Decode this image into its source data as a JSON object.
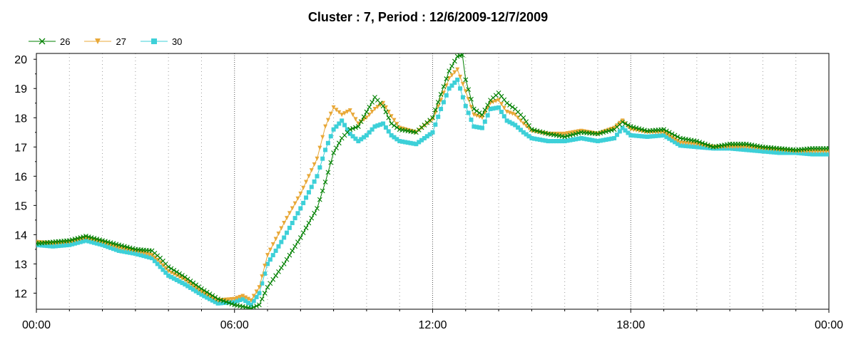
{
  "chart_data": {
    "type": "line",
    "title": "Cluster : 7, Period : 12/6/2009-12/7/2009",
    "xlabel": "",
    "ylabel": "",
    "x_ticks": [
      "00:00",
      "06:00",
      "12:00",
      "18:00",
      "00:00"
    ],
    "y_ticks": [
      "12",
      "13",
      "14",
      "15",
      "16",
      "17",
      "18",
      "19",
      "20"
    ],
    "ylim": [
      11.45,
      20.2
    ],
    "xlim_hours": [
      0,
      24
    ],
    "grid": true,
    "legend_position": "top-left",
    "series": [
      {
        "name": "26",
        "color": "#008000",
        "marker": "x",
        "points": [
          [
            0,
            13.7
          ],
          [
            0.5,
            13.75
          ],
          [
            1,
            13.8
          ],
          [
            1.5,
            13.95
          ],
          [
            2,
            13.8
          ],
          [
            2.5,
            13.65
          ],
          [
            3,
            13.5
          ],
          [
            3.5,
            13.45
          ],
          [
            3.75,
            13.2
          ],
          [
            4,
            12.9
          ],
          [
            4.5,
            12.55
          ],
          [
            5,
            12.15
          ],
          [
            5.5,
            11.8
          ],
          [
            6,
            11.6
          ],
          [
            6.5,
            11.48
          ],
          [
            6.75,
            11.6
          ],
          [
            7,
            12.2
          ],
          [
            7.5,
            13.0
          ],
          [
            8,
            13.9
          ],
          [
            8.5,
            14.9
          ],
          [
            8.75,
            15.8
          ],
          [
            9,
            16.8
          ],
          [
            9.25,
            17.3
          ],
          [
            9.5,
            17.6
          ],
          [
            9.75,
            17.7
          ],
          [
            10,
            18.2
          ],
          [
            10.25,
            18.7
          ],
          [
            10.5,
            18.4
          ],
          [
            10.75,
            17.8
          ],
          [
            11,
            17.6
          ],
          [
            11.5,
            17.5
          ],
          [
            12,
            18.0
          ],
          [
            12.25,
            18.8
          ],
          [
            12.5,
            19.6
          ],
          [
            12.75,
            20.1
          ],
          [
            12.9,
            20.15
          ],
          [
            13,
            19.3
          ],
          [
            13.25,
            18.3
          ],
          [
            13.5,
            18.1
          ],
          [
            13.75,
            18.6
          ],
          [
            14,
            18.85
          ],
          [
            14.25,
            18.5
          ],
          [
            14.5,
            18.3
          ],
          [
            14.75,
            18.0
          ],
          [
            15,
            17.6
          ],
          [
            15.5,
            17.45
          ],
          [
            16,
            17.35
          ],
          [
            16.5,
            17.5
          ],
          [
            17,
            17.45
          ],
          [
            17.5,
            17.6
          ],
          [
            17.75,
            17.85
          ],
          [
            18,
            17.7
          ],
          [
            18.5,
            17.55
          ],
          [
            19,
            17.6
          ],
          [
            19.5,
            17.3
          ],
          [
            20,
            17.2
          ],
          [
            20.5,
            17.0
          ],
          [
            21,
            17.1
          ],
          [
            21.5,
            17.1
          ],
          [
            22,
            17.0
          ],
          [
            22.5,
            16.95
          ],
          [
            23,
            16.9
          ],
          [
            23.5,
            16.95
          ],
          [
            24,
            16.95
          ]
        ]
      },
      {
        "name": "27",
        "color": "#e8a838",
        "marker": "triangle-down",
        "points": [
          [
            0,
            13.75
          ],
          [
            0.5,
            13.7
          ],
          [
            1,
            13.75
          ],
          [
            1.5,
            13.9
          ],
          [
            2,
            13.75
          ],
          [
            2.5,
            13.55
          ],
          [
            3,
            13.45
          ],
          [
            3.5,
            13.3
          ],
          [
            3.75,
            13.05
          ],
          [
            4,
            12.75
          ],
          [
            4.5,
            12.45
          ],
          [
            5,
            12.05
          ],
          [
            5.5,
            11.75
          ],
          [
            6,
            11.8
          ],
          [
            6.25,
            11.9
          ],
          [
            6.5,
            11.75
          ],
          [
            6.75,
            12.2
          ],
          [
            7,
            13.3
          ],
          [
            7.5,
            14.4
          ],
          [
            8,
            15.4
          ],
          [
            8.5,
            16.6
          ],
          [
            8.75,
            17.7
          ],
          [
            9,
            18.35
          ],
          [
            9.25,
            18.1
          ],
          [
            9.5,
            18.25
          ],
          [
            9.75,
            17.8
          ],
          [
            10,
            18.0
          ],
          [
            10.25,
            18.3
          ],
          [
            10.5,
            18.5
          ],
          [
            10.75,
            18.05
          ],
          [
            11,
            17.65
          ],
          [
            11.5,
            17.5
          ],
          [
            12,
            17.95
          ],
          [
            12.25,
            18.6
          ],
          [
            12.5,
            19.35
          ],
          [
            12.75,
            19.65
          ],
          [
            13,
            18.9
          ],
          [
            13.25,
            18.1
          ],
          [
            13.5,
            18.0
          ],
          [
            13.75,
            18.5
          ],
          [
            14,
            18.6
          ],
          [
            14.25,
            18.2
          ],
          [
            14.5,
            18.1
          ],
          [
            14.75,
            17.8
          ],
          [
            15,
            17.55
          ],
          [
            15.5,
            17.45
          ],
          [
            16,
            17.45
          ],
          [
            16.5,
            17.55
          ],
          [
            17,
            17.45
          ],
          [
            17.5,
            17.65
          ],
          [
            17.75,
            17.9
          ],
          [
            18,
            17.6
          ],
          [
            18.5,
            17.5
          ],
          [
            19,
            17.5
          ],
          [
            19.5,
            17.15
          ],
          [
            20,
            17.1
          ],
          [
            20.5,
            17.0
          ],
          [
            21,
            17.0
          ],
          [
            21.5,
            17.0
          ],
          [
            22,
            16.95
          ],
          [
            22.5,
            16.9
          ],
          [
            23,
            16.85
          ],
          [
            23.5,
            16.85
          ],
          [
            24,
            16.85
          ]
        ]
      },
      {
        "name": "30",
        "color": "#3dd0d8",
        "marker": "square",
        "points": [
          [
            0,
            13.65
          ],
          [
            0.5,
            13.6
          ],
          [
            1,
            13.65
          ],
          [
            1.5,
            13.8
          ],
          [
            2,
            13.65
          ],
          [
            2.5,
            13.45
          ],
          [
            3,
            13.35
          ],
          [
            3.5,
            13.2
          ],
          [
            3.75,
            12.9
          ],
          [
            4,
            12.6
          ],
          [
            4.5,
            12.3
          ],
          [
            5,
            11.95
          ],
          [
            5.5,
            11.65
          ],
          [
            6,
            11.7
          ],
          [
            6.25,
            11.8
          ],
          [
            6.5,
            11.6
          ],
          [
            6.75,
            12.0
          ],
          [
            7,
            13.0
          ],
          [
            7.5,
            13.9
          ],
          [
            8,
            14.9
          ],
          [
            8.5,
            16.0
          ],
          [
            8.75,
            16.9
          ],
          [
            9,
            17.6
          ],
          [
            9.25,
            17.9
          ],
          [
            9.5,
            17.45
          ],
          [
            9.75,
            17.2
          ],
          [
            10,
            17.4
          ],
          [
            10.25,
            17.7
          ],
          [
            10.5,
            17.8
          ],
          [
            10.75,
            17.4
          ],
          [
            11,
            17.2
          ],
          [
            11.5,
            17.1
          ],
          [
            12,
            17.5
          ],
          [
            12.25,
            18.3
          ],
          [
            12.5,
            19.0
          ],
          [
            12.75,
            19.3
          ],
          [
            13,
            18.4
          ],
          [
            13.25,
            17.7
          ],
          [
            13.5,
            17.65
          ],
          [
            13.75,
            18.3
          ],
          [
            14,
            18.35
          ],
          [
            14.25,
            17.9
          ],
          [
            14.5,
            17.75
          ],
          [
            14.75,
            17.5
          ],
          [
            15,
            17.3
          ],
          [
            15.5,
            17.2
          ],
          [
            16,
            17.2
          ],
          [
            16.5,
            17.3
          ],
          [
            17,
            17.2
          ],
          [
            17.5,
            17.3
          ],
          [
            17.75,
            17.65
          ],
          [
            18,
            17.4
          ],
          [
            18.5,
            17.35
          ],
          [
            19,
            17.4
          ],
          [
            19.5,
            17.05
          ],
          [
            20,
            17.0
          ],
          [
            20.5,
            16.95
          ],
          [
            21,
            16.95
          ],
          [
            21.5,
            16.9
          ],
          [
            22,
            16.85
          ],
          [
            22.5,
            16.8
          ],
          [
            23,
            16.8
          ],
          [
            23.5,
            16.75
          ],
          [
            24,
            16.75
          ]
        ]
      }
    ]
  }
}
